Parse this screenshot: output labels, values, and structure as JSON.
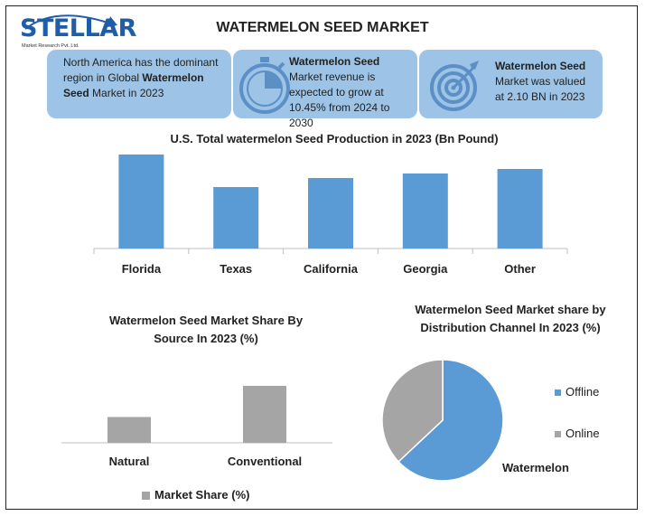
{
  "brand": {
    "name": "STELLAR",
    "tagline": "Market Research Pvt. Ltd."
  },
  "title": "WATERMELON SEED MARKET",
  "cards": [
    {
      "pre": "North America has the dominant region in Global ",
      "bold": "Watermelon Seed",
      "post": " Market in 2023",
      "icon": "none"
    },
    {
      "pre": "",
      "bold": "Watermelon Seed",
      "post": " Market revenue is expected to grow at 10.45% from 2024 to 2030",
      "icon": "stopwatch-icon"
    },
    {
      "pre": "",
      "bold": "Watermelon Seed",
      "post": " Market was valued at 2.10 BN in 2023",
      "icon": "target-icon"
    }
  ],
  "colors": {
    "card": "#9dc3e6",
    "bar_blue": "#5b9bd5",
    "bar_gray": "#a5a5a5",
    "brand": "#1f5da8"
  },
  "chart_data": [
    {
      "type": "bar",
      "title": "U.S. Total watermelon Seed Production in 2023 (Bn Pound)",
      "categories": [
        "Florida",
        "Texas",
        "California",
        "Georgia",
        "Other"
      ],
      "values": [
        10.4,
        6.8,
        7.8,
        8.3,
        8.8
      ],
      "ylim": [
        0,
        10.4
      ],
      "color": "#5b9bd5",
      "legend": null
    },
    {
      "type": "bar",
      "title": "Watermelon Seed Market Share By Source In 2023 (%)",
      "categories": [
        "Natural",
        "Conventional"
      ],
      "series": [
        {
          "name": "Market Share (%)",
          "values": [
            29,
            64
          ]
        }
      ],
      "ylim": [
        0,
        64
      ],
      "color": "#a5a5a5",
      "legend": "bottom"
    },
    {
      "type": "pie",
      "title": "Watermelon Seed Market share by Distribution Channel In 2023 (%)",
      "labels": [
        "Offline",
        "Online"
      ],
      "values": [
        63,
        37
      ],
      "colors": [
        "#5b9bd5",
        "#a5a5a5"
      ],
      "annotation": "Watermelon",
      "legend": "right"
    }
  ]
}
